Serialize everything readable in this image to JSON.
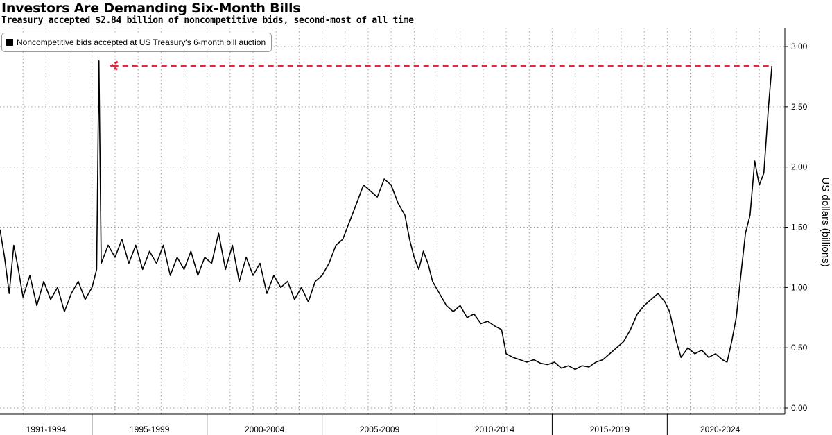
{
  "chart_data": {
    "type": "line",
    "title": "Investors Are Demanding Six-Month Bills",
    "subtitle": "Treasury accepted $2.84 billion of noncompetitive bids, second-most of all time",
    "ylabel": "US dollars (billions)",
    "ylim": [
      0,
      3.1
    ],
    "y_ticks": [
      "3.00",
      "2.50",
      "2.00",
      "1.50",
      "1.00",
      "0.50",
      "0.00"
    ],
    "y_tick_values": [
      3.0,
      2.5,
      2.0,
      1.5,
      1.0,
      0.5,
      0.0
    ],
    "x_categories": [
      "1991-1994",
      "1995-1999",
      "2000-2004",
      "2005-2009",
      "2010-2014",
      "2015-2019",
      "2020-2024"
    ],
    "xlim": [
      1991.0,
      2024.6
    ],
    "grid": true,
    "legend_position": "top-left",
    "series": [
      {
        "name": "Noncompetitive bids accepted at US Treasury's 6-month bill auction",
        "color": "#000000",
        "points": [
          [
            1991.0,
            1.48
          ],
          [
            1991.2,
            1.25
          ],
          [
            1991.4,
            0.95
          ],
          [
            1991.6,
            1.35
          ],
          [
            1991.8,
            1.15
          ],
          [
            1992.0,
            0.92
          ],
          [
            1992.3,
            1.1
          ],
          [
            1992.6,
            0.85
          ],
          [
            1992.9,
            1.05
          ],
          [
            1993.2,
            0.9
          ],
          [
            1993.5,
            1.0
          ],
          [
            1993.8,
            0.8
          ],
          [
            1994.1,
            0.95
          ],
          [
            1994.4,
            1.05
          ],
          [
            1994.7,
            0.9
          ],
          [
            1995.0,
            1.0
          ],
          [
            1995.2,
            1.15
          ],
          [
            1995.3,
            2.88
          ],
          [
            1995.4,
            1.2
          ],
          [
            1995.7,
            1.35
          ],
          [
            1996.0,
            1.25
          ],
          [
            1996.3,
            1.4
          ],
          [
            1996.6,
            1.2
          ],
          [
            1996.9,
            1.35
          ],
          [
            1997.2,
            1.15
          ],
          [
            1997.5,
            1.3
          ],
          [
            1997.8,
            1.2
          ],
          [
            1998.1,
            1.35
          ],
          [
            1998.4,
            1.1
          ],
          [
            1998.7,
            1.25
          ],
          [
            1999.0,
            1.15
          ],
          [
            1999.3,
            1.3
          ],
          [
            1999.6,
            1.1
          ],
          [
            1999.9,
            1.25
          ],
          [
            2000.2,
            1.2
          ],
          [
            2000.5,
            1.45
          ],
          [
            2000.8,
            1.15
          ],
          [
            2001.1,
            1.35
          ],
          [
            2001.4,
            1.05
          ],
          [
            2001.7,
            1.25
          ],
          [
            2002.0,
            1.1
          ],
          [
            2002.3,
            1.2
          ],
          [
            2002.6,
            0.95
          ],
          [
            2002.9,
            1.1
          ],
          [
            2003.2,
            1.0
          ],
          [
            2003.5,
            1.05
          ],
          [
            2003.8,
            0.9
          ],
          [
            2004.1,
            1.0
          ],
          [
            2004.4,
            0.88
          ],
          [
            2004.7,
            1.05
          ],
          [
            2005.0,
            1.1
          ],
          [
            2005.3,
            1.2
          ],
          [
            2005.6,
            1.35
          ],
          [
            2005.9,
            1.4
          ],
          [
            2006.2,
            1.55
          ],
          [
            2006.5,
            1.7
          ],
          [
            2006.8,
            1.85
          ],
          [
            2007.1,
            1.8
          ],
          [
            2007.4,
            1.75
          ],
          [
            2007.7,
            1.9
          ],
          [
            2008.0,
            1.85
          ],
          [
            2008.3,
            1.7
          ],
          [
            2008.6,
            1.6
          ],
          [
            2008.8,
            1.4
          ],
          [
            2009.0,
            1.25
          ],
          [
            2009.2,
            1.15
          ],
          [
            2009.4,
            1.3
          ],
          [
            2009.6,
            1.2
          ],
          [
            2009.8,
            1.05
          ],
          [
            2010.1,
            0.95
          ],
          [
            2010.4,
            0.85
          ],
          [
            2010.7,
            0.8
          ],
          [
            2011.0,
            0.85
          ],
          [
            2011.3,
            0.75
          ],
          [
            2011.6,
            0.78
          ],
          [
            2011.9,
            0.7
          ],
          [
            2012.2,
            0.72
          ],
          [
            2012.5,
            0.68
          ],
          [
            2012.8,
            0.65
          ],
          [
            2013.0,
            0.45
          ],
          [
            2013.3,
            0.42
          ],
          [
            2013.6,
            0.4
          ],
          [
            2013.9,
            0.38
          ],
          [
            2014.2,
            0.4
          ],
          [
            2014.5,
            0.37
          ],
          [
            2014.8,
            0.36
          ],
          [
            2015.1,
            0.38
          ],
          [
            2015.4,
            0.33
          ],
          [
            2015.7,
            0.35
          ],
          [
            2016.0,
            0.32
          ],
          [
            2016.3,
            0.35
          ],
          [
            2016.6,
            0.34
          ],
          [
            2016.9,
            0.38
          ],
          [
            2017.2,
            0.4
          ],
          [
            2017.5,
            0.45
          ],
          [
            2017.8,
            0.5
          ],
          [
            2018.1,
            0.55
          ],
          [
            2018.4,
            0.65
          ],
          [
            2018.7,
            0.78
          ],
          [
            2019.0,
            0.85
          ],
          [
            2019.3,
            0.9
          ],
          [
            2019.6,
            0.95
          ],
          [
            2019.9,
            0.88
          ],
          [
            2020.1,
            0.8
          ],
          [
            2020.4,
            0.55
          ],
          [
            2020.6,
            0.42
          ],
          [
            2020.9,
            0.5
          ],
          [
            2021.2,
            0.45
          ],
          [
            2021.5,
            0.48
          ],
          [
            2021.8,
            0.42
          ],
          [
            2022.1,
            0.45
          ],
          [
            2022.4,
            0.4
          ],
          [
            2022.6,
            0.38
          ],
          [
            2022.8,
            0.55
          ],
          [
            2023.0,
            0.75
          ],
          [
            2023.2,
            1.1
          ],
          [
            2023.4,
            1.45
          ],
          [
            2023.6,
            1.6
          ],
          [
            2023.8,
            2.05
          ],
          [
            2024.0,
            1.85
          ],
          [
            2024.2,
            1.95
          ],
          [
            2024.4,
            2.5
          ],
          [
            2024.55,
            2.84
          ]
        ]
      }
    ],
    "annotation": {
      "type": "dashed-reference-line",
      "value": 2.84,
      "color": "#e8253f",
      "from_x": 1995.3,
      "to_x": 2024.55
    }
  }
}
